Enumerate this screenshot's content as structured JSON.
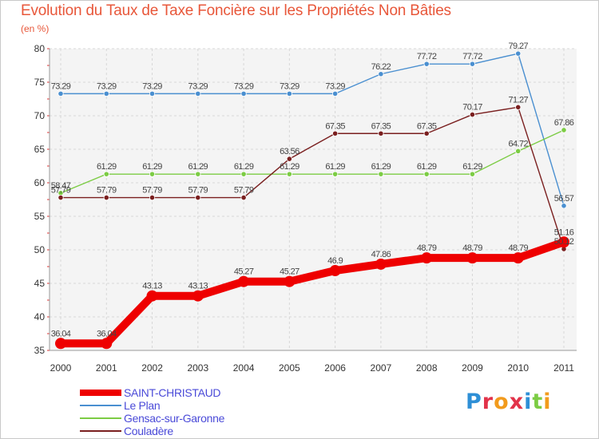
{
  "header": {
    "title": "Evolution du Taux de Taxe Foncière sur les Propriétés Non Bâties",
    "unit": "(en %)"
  },
  "chart_data": {
    "type": "line",
    "title": "Evolution du Taux de Taxe Foncière sur les Propriétés Non Bâties",
    "ylabel": "(en %)",
    "xlabel": "",
    "ylim": [
      35,
      80
    ],
    "yticks": [
      35,
      40,
      45,
      50,
      55,
      60,
      65,
      70,
      75,
      80
    ],
    "categories": [
      "2000",
      "2001",
      "2002",
      "2003",
      "2004",
      "2005",
      "2006",
      "2007",
      "2008",
      "2009",
      "2010",
      "2011"
    ],
    "grid": true,
    "series": [
      {
        "name": "SAINT-CHRISTAUD",
        "color": "#ee0000",
        "values": [
          36.04,
          36.04,
          43.13,
          43.13,
          45.27,
          45.27,
          46.9,
          47.86,
          48.79,
          48.79,
          48.79,
          51.16
        ],
        "labels": [
          "36.04",
          "36.04",
          "43.13",
          "43.13",
          "45.27",
          "45.27",
          "46.9",
          "47.86",
          "48.79",
          "48.79",
          "48.79",
          "51.16"
        ]
      },
      {
        "name": "Le Plan",
        "color": "#4a8fd0",
        "values": [
          73.29,
          73.29,
          73.29,
          73.29,
          73.29,
          73.29,
          73.29,
          76.22,
          77.72,
          77.72,
          79.27,
          56.57
        ],
        "labels": [
          "73.29",
          "73.29",
          "73.29",
          "73.29",
          "73.29",
          "73.29",
          "73.29",
          "76.22",
          "77.72",
          "77.72",
          "79.27",
          "56.57"
        ]
      },
      {
        "name": "Gensac-sur-Garonne",
        "color": "#7ccc44",
        "values": [
          58.47,
          61.29,
          61.29,
          61.29,
          61.29,
          61.29,
          61.29,
          61.29,
          61.29,
          61.29,
          64.72,
          67.86
        ],
        "labels": [
          "58.47",
          "61.29",
          "61.29",
          "61.29",
          "61.29",
          "61.29",
          "61.29",
          "61.29",
          "61.29",
          "61.29",
          "64.72",
          "67.86"
        ]
      },
      {
        "name": "Couladère",
        "color": "#7a1f1f",
        "values": [
          57.79,
          57.79,
          57.79,
          57.79,
          57.79,
          63.56,
          67.35,
          67.35,
          67.35,
          70.17,
          71.27,
          50.12
        ],
        "labels": [
          "57.79",
          "57.79",
          "57.79",
          "57.79",
          "57.79",
          "63.56",
          "67.35",
          "67.35",
          "67.35",
          "70.17",
          "71.27",
          "50.12"
        ]
      }
    ]
  },
  "legend": {
    "items": [
      {
        "label": "SAINT-CHRISTAUD",
        "color": "#ee0000"
      },
      {
        "label": "Le Plan",
        "color": "#4a8fd0"
      },
      {
        "label": "Gensac-sur-Garonne",
        "color": "#7ccc44"
      },
      {
        "label": "Couladère",
        "color": "#7a1f1f"
      }
    ]
  },
  "logo": {
    "text": "Proxiti"
  }
}
